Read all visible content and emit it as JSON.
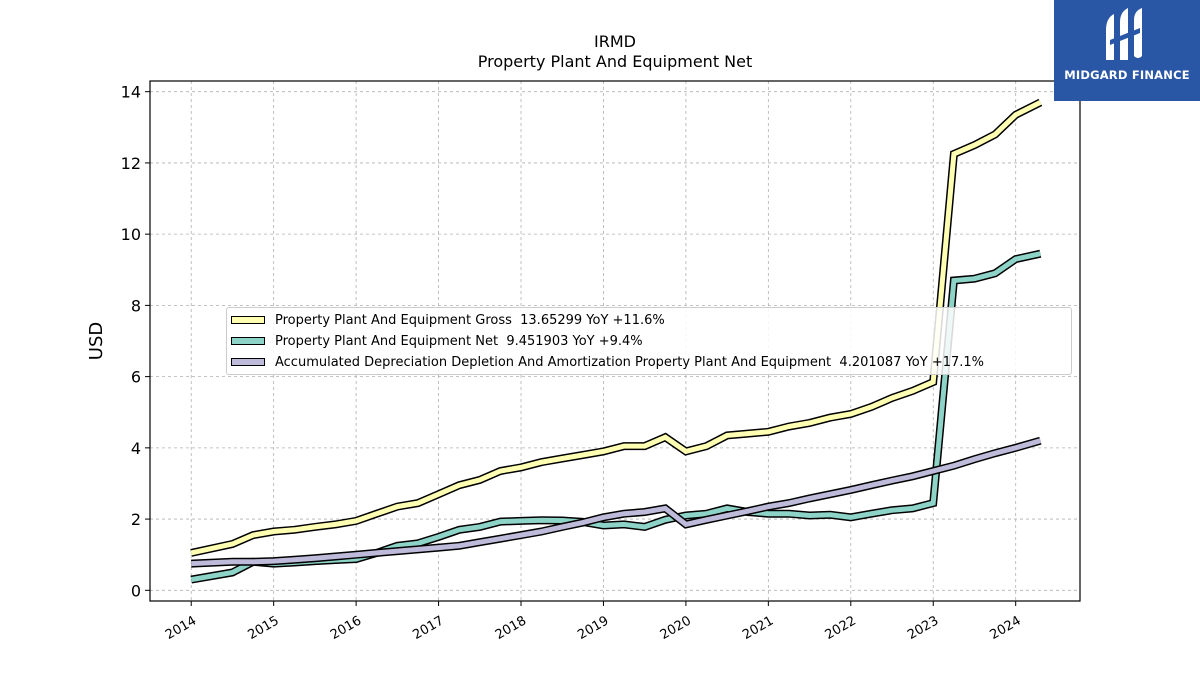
{
  "title": "IRMD",
  "subtitle": "Property Plant And Equipment Net",
  "logo": {
    "text": "MIDGARD FINANCE",
    "icon": "midgard-logo-icon",
    "color": "#2a56a6"
  },
  "chart_data": {
    "type": "line",
    "ylabel": "USD",
    "xlabel": "",
    "xlim": [
      2013.5,
      2024.78
    ],
    "ylim": [
      -0.3,
      14.3
    ],
    "yticks": [
      0,
      2,
      4,
      6,
      8,
      10,
      12,
      14
    ],
    "xticks": [
      "2014",
      "2015",
      "2016",
      "2017",
      "2018",
      "2019",
      "2020",
      "2021",
      "2022",
      "2023",
      "2024"
    ],
    "grid": true,
    "legend_position": "center-left",
    "series": [
      {
        "name": "Property Plant And Equipment Gross",
        "legend": "Property Plant And Equipment Gross  13.65299 YoY +11.6%",
        "color": "#ffffb3",
        "x": [
          2014.0,
          2014.5,
          2014.75,
          2015.0,
          2015.25,
          2015.5,
          2015.75,
          2016.0,
          2016.25,
          2016.5,
          2016.75,
          2017.0,
          2017.25,
          2017.5,
          2017.75,
          2018.0,
          2018.25,
          2018.5,
          2018.75,
          2019.0,
          2019.25,
          2019.5,
          2019.75,
          2020.0,
          2020.25,
          2020.5,
          2020.75,
          2021.0,
          2021.25,
          2021.5,
          2021.75,
          2022.0,
          2022.25,
          2022.5,
          2022.75,
          2023.0,
          2023.25,
          2023.5,
          2023.75,
          2024.0,
          2024.3
        ],
        "y": [
          1.05,
          1.3,
          1.55,
          1.65,
          1.7,
          1.78,
          1.85,
          1.95,
          2.15,
          2.35,
          2.45,
          2.7,
          2.95,
          3.1,
          3.35,
          3.45,
          3.6,
          3.7,
          3.8,
          3.9,
          4.05,
          4.05,
          4.3,
          3.9,
          4.05,
          4.35,
          4.4,
          4.45,
          4.6,
          4.7,
          4.85,
          4.95,
          5.15,
          5.4,
          5.6,
          5.85,
          12.25,
          12.5,
          12.8,
          13.35,
          13.7
        ]
      },
      {
        "name": "Property Plant And Equipment Net",
        "legend": "Property Plant And Equipment Net  9.451903 YoY +9.4%",
        "color": "#8dd3c7",
        "x": [
          2014.0,
          2014.5,
          2014.75,
          2015.0,
          2015.25,
          2015.5,
          2015.75,
          2016.0,
          2016.25,
          2016.5,
          2016.75,
          2017.0,
          2017.25,
          2017.5,
          2017.75,
          2018.0,
          2018.25,
          2018.5,
          2018.75,
          2019.0,
          2019.25,
          2019.5,
          2019.75,
          2020.0,
          2020.25,
          2020.5,
          2020.75,
          2021.0,
          2021.25,
          2021.5,
          2021.75,
          2022.0,
          2022.25,
          2022.5,
          2022.75,
          2023.0,
          2023.25,
          2023.5,
          2023.75,
          2024.0,
          2024.3
        ],
        "y": [
          0.3,
          0.5,
          0.8,
          0.75,
          0.78,
          0.82,
          0.85,
          0.88,
          1.05,
          1.25,
          1.32,
          1.5,
          1.7,
          1.78,
          1.93,
          1.95,
          1.97,
          1.96,
          1.92,
          1.82,
          1.85,
          1.78,
          1.98,
          2.1,
          2.15,
          2.3,
          2.2,
          2.15,
          2.15,
          2.1,
          2.12,
          2.05,
          2.15,
          2.25,
          2.3,
          2.45,
          8.7,
          8.75,
          8.9,
          9.3,
          9.45
        ]
      },
      {
        "name": "Accumulated Depreciation Depletion And Amortization Property Plant And Equipment",
        "legend": "Accumulated Depreciation Depletion And Amortization Property Plant And Equipment  4.201087 YoY +17.1%",
        "color": "#bebada",
        "x": [
          2014.0,
          2014.5,
          2014.75,
          2015.0,
          2015.25,
          2015.5,
          2015.75,
          2016.0,
          2016.25,
          2016.5,
          2016.75,
          2017.0,
          2017.25,
          2017.5,
          2017.75,
          2018.0,
          2018.25,
          2018.5,
          2018.75,
          2019.0,
          2019.25,
          2019.5,
          2019.75,
          2020.0,
          2020.25,
          2020.5,
          2020.75,
          2021.0,
          2021.25,
          2021.5,
          2021.75,
          2022.0,
          2022.25,
          2022.5,
          2022.75,
          2023.0,
          2023.25,
          2023.5,
          2023.75,
          2024.0,
          2024.3
        ],
        "y": [
          0.75,
          0.8,
          0.8,
          0.82,
          0.86,
          0.9,
          0.95,
          1.0,
          1.05,
          1.1,
          1.15,
          1.2,
          1.25,
          1.35,
          1.45,
          1.55,
          1.65,
          1.78,
          1.9,
          2.05,
          2.15,
          2.2,
          2.3,
          1.85,
          1.98,
          2.1,
          2.22,
          2.35,
          2.45,
          2.58,
          2.7,
          2.82,
          2.95,
          3.08,
          3.2,
          3.35,
          3.5,
          3.68,
          3.85,
          4.0,
          4.2
        ]
      }
    ]
  }
}
